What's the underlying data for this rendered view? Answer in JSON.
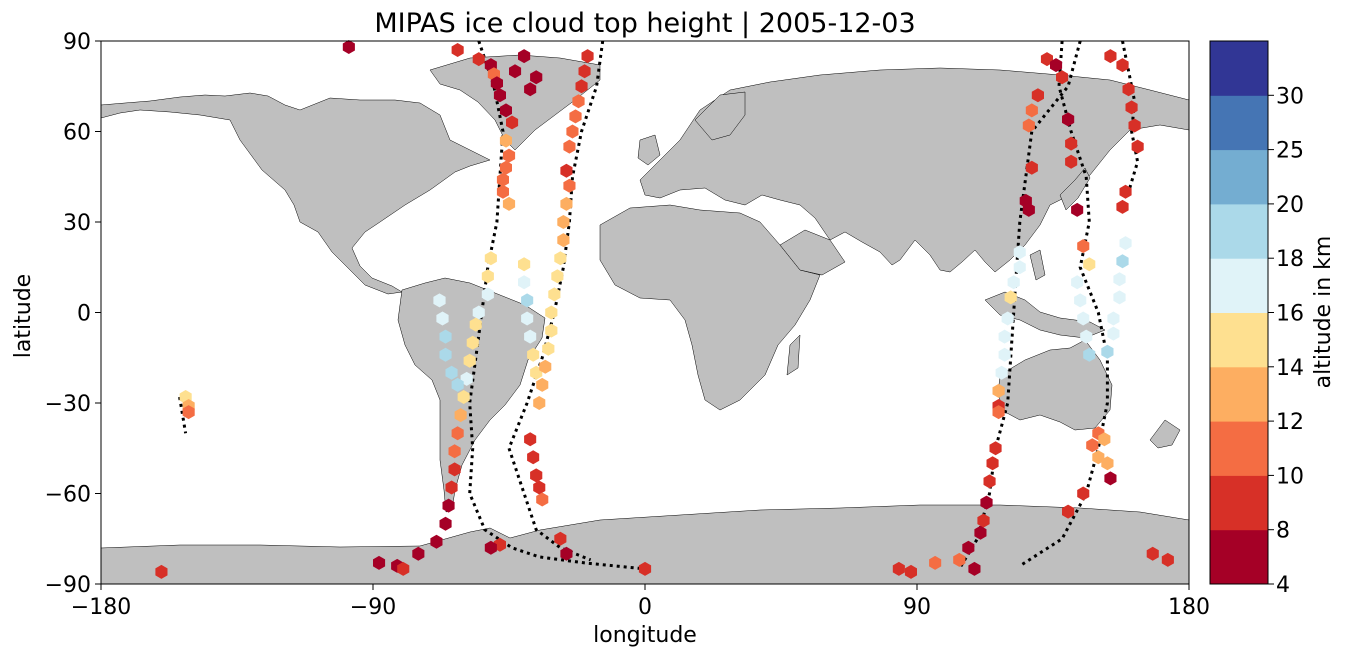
{
  "title": "MIPAS ice cloud top height | 2005-12-03",
  "colors": {
    "land": "#bfbfbf",
    "coast": "#000000",
    "track": "#000000"
  },
  "map": {
    "xlabel": "longitude",
    "ylabel": "latitude",
    "xlim": [
      -180,
      180
    ],
    "ylim": [
      -90,
      90
    ],
    "x_ticks": [
      {
        "value": -180,
        "label": "−180"
      },
      {
        "value": -90,
        "label": "−90"
      },
      {
        "value": 0,
        "label": "0"
      },
      {
        "value": 90,
        "label": "90"
      },
      {
        "value": 180,
        "label": "180"
      }
    ],
    "y_ticks": [
      {
        "value": 90,
        "label": "90"
      },
      {
        "value": 60,
        "label": "60"
      },
      {
        "value": 30,
        "label": "30"
      },
      {
        "value": 0,
        "label": "0"
      },
      {
        "value": -30,
        "label": "−30"
      },
      {
        "value": -60,
        "label": "−60"
      },
      {
        "value": -90,
        "label": "−90"
      }
    ]
  },
  "colorbar": {
    "label": "altitude in km",
    "boundaries": [
      4,
      8,
      10,
      12,
      14,
      16,
      18,
      20,
      25,
      30
    ],
    "tick_labels": [
      "4",
      "8",
      "10",
      "12",
      "14",
      "16",
      "18",
      "20",
      "25",
      "30"
    ],
    "colors": [
      "#a50026",
      "#d73027",
      "#f46d43",
      "#fdae61",
      "#fee090",
      "#e0f3f8",
      "#abd9e9",
      "#74add1",
      "#4575b4",
      "#313695"
    ]
  },
  "chart_data": {
    "type": "scatter",
    "xlabel": "longitude",
    "ylabel": "latitude",
    "xlim": [
      -180,
      180
    ],
    "ylim": [
      -90,
      90
    ],
    "orbit_tracks": [
      [
        [
          -55,
          90
        ],
        [
          -50,
          75
        ],
        [
          -47,
          60
        ],
        [
          -48,
          45
        ],
        [
          -49,
          30
        ],
        [
          -52,
          15
        ],
        [
          -54,
          0
        ],
        [
          -56,
          -15
        ],
        [
          -58,
          -30
        ],
        [
          -57,
          -45
        ],
        [
          -58,
          -60
        ],
        [
          -53,
          -72
        ],
        [
          -44,
          -78
        ],
        [
          -35,
          -81
        ],
        [
          -20,
          -83
        ],
        [
          0,
          -85
        ]
      ],
      [
        [
          -14,
          90
        ],
        [
          -16,
          75
        ],
        [
          -21,
          60
        ],
        [
          -24,
          45
        ],
        [
          -25,
          30
        ],
        [
          -27,
          15
        ],
        [
          -30,
          0
        ],
        [
          -34,
          -15
        ],
        [
          -39,
          -30
        ],
        [
          -45,
          -45
        ],
        [
          -40,
          -60
        ],
        [
          -36,
          -72
        ],
        [
          -28,
          -78
        ],
        [
          -18,
          -82
        ]
      ],
      [
        [
          144,
          90
        ],
        [
          140,
          75
        ],
        [
          128,
          60
        ],
        [
          126,
          45
        ],
        [
          124,
          30
        ],
        [
          123,
          15
        ],
        [
          122,
          0
        ],
        [
          121,
          -15
        ],
        [
          120,
          -30
        ],
        [
          116,
          -45
        ],
        [
          114,
          -60
        ],
        [
          110,
          -75
        ],
        [
          104,
          -85
        ]
      ],
      [
        [
          138,
          90
        ],
        [
          137,
          75
        ],
        [
          141,
          60
        ],
        [
          146,
          45
        ],
        [
          147,
          30
        ],
        [
          144,
          15
        ],
        [
          150,
          0
        ],
        [
          153,
          -15
        ],
        [
          153,
          -30
        ],
        [
          150,
          -45
        ],
        [
          146,
          -60
        ],
        [
          138,
          -75
        ],
        [
          124,
          -84
        ]
      ],
      [
        [
          158,
          90
        ],
        [
          160,
          80
        ],
        [
          162,
          70
        ],
        [
          161,
          60
        ],
        [
          163,
          50
        ],
        [
          160,
          40
        ]
      ],
      [
        [
          -154,
          -28
        ],
        [
          -152,
          -40
        ]
      ]
    ],
    "points": [
      {
        "lon": -98,
        "lat": 88,
        "alt": 6
      },
      {
        "lon": -62,
        "lat": 87,
        "alt": 9
      },
      {
        "lon": -55,
        "lat": 84,
        "alt": 9
      },
      {
        "lon": -51,
        "lat": 82,
        "alt": 6
      },
      {
        "lon": -50,
        "lat": 79,
        "alt": 11
      },
      {
        "lon": -49,
        "lat": 76,
        "alt": 6
      },
      {
        "lon": -43,
        "lat": 80,
        "alt": 6
      },
      {
        "lon": -40,
        "lat": 85,
        "alt": 6
      },
      {
        "lon": -48,
        "lat": 72,
        "alt": 6
      },
      {
        "lon": -46,
        "lat": 67,
        "alt": 6
      },
      {
        "lon": -44,
        "lat": 63,
        "alt": 9
      },
      {
        "lon": -38,
        "lat": 74,
        "alt": 6
      },
      {
        "lon": -36,
        "lat": 78,
        "alt": 6
      },
      {
        "lon": -46,
        "lat": 57,
        "alt": 12
      },
      {
        "lon": -45,
        "lat": 52,
        "alt": 11
      },
      {
        "lon": -46,
        "lat": 48,
        "alt": 11
      },
      {
        "lon": -47,
        "lat": 44,
        "alt": 11
      },
      {
        "lon": -47,
        "lat": 40,
        "alt": 11
      },
      {
        "lon": -45,
        "lat": 36,
        "alt": 13
      },
      {
        "lon": -51,
        "lat": 18,
        "alt": 15
      },
      {
        "lon": -52,
        "lat": 12,
        "alt": 15
      },
      {
        "lon": -52,
        "lat": 6,
        "alt": 17
      },
      {
        "lon": -55,
        "lat": 0,
        "alt": 17
      },
      {
        "lon": -56,
        "lat": -4,
        "alt": 15
      },
      {
        "lon": -57,
        "lat": -10,
        "alt": 15
      },
      {
        "lon": -58,
        "lat": -16,
        "alt": 15
      },
      {
        "lon": -59,
        "lat": -22,
        "alt": 17
      },
      {
        "lon": -60,
        "lat": -28,
        "alt": 15
      },
      {
        "lon": -61,
        "lat": -34,
        "alt": 13
      },
      {
        "lon": -62,
        "lat": -40,
        "alt": 11
      },
      {
        "lon": -63,
        "lat": -46,
        "alt": 11
      },
      {
        "lon": -63,
        "lat": -52,
        "alt": 9
      },
      {
        "lon": -64,
        "lat": -58,
        "alt": 9
      },
      {
        "lon": -65,
        "lat": -64,
        "alt": 6
      },
      {
        "lon": -66,
        "lat": -70,
        "alt": 6
      },
      {
        "lon": -69,
        "lat": -76,
        "alt": 6
      },
      {
        "lon": -75,
        "lat": -80,
        "alt": 6
      },
      {
        "lon": -82,
        "lat": -84,
        "alt": 6
      },
      {
        "lon": -68,
        "lat": 4,
        "alt": 17
      },
      {
        "lon": -67,
        "lat": -2,
        "alt": 17
      },
      {
        "lon": -66,
        "lat": -8,
        "alt": 19
      },
      {
        "lon": -66,
        "lat": -14,
        "alt": 19
      },
      {
        "lon": -64,
        "lat": -20,
        "alt": 19
      },
      {
        "lon": -62,
        "lat": -24,
        "alt": 19
      },
      {
        "lon": -40,
        "lat": 16,
        "alt": 15
      },
      {
        "lon": -40,
        "lat": 10,
        "alt": 17
      },
      {
        "lon": -39,
        "lat": 4,
        "alt": 19
      },
      {
        "lon": -39,
        "lat": -2,
        "alt": 17
      },
      {
        "lon": -38,
        "lat": -8,
        "alt": 17
      },
      {
        "lon": -37,
        "lat": -14,
        "alt": 15
      },
      {
        "lon": -36,
        "lat": -20,
        "alt": 15
      },
      {
        "lon": -19,
        "lat": 85,
        "alt": 9
      },
      {
        "lon": -20,
        "lat": 80,
        "alt": 9
      },
      {
        "lon": -21,
        "lat": 75,
        "alt": 9
      },
      {
        "lon": -22,
        "lat": 70,
        "alt": 11
      },
      {
        "lon": -23,
        "lat": 65,
        "alt": 11
      },
      {
        "lon": -24,
        "lat": 60,
        "alt": 11
      },
      {
        "lon": -25,
        "lat": 55,
        "alt": 11
      },
      {
        "lon": -26,
        "lat": 47,
        "alt": 9
      },
      {
        "lon": -25,
        "lat": 42,
        "alt": 11
      },
      {
        "lon": -26,
        "lat": 36,
        "alt": 13
      },
      {
        "lon": -27,
        "lat": 30,
        "alt": 13
      },
      {
        "lon": -27,
        "lat": 24,
        "alt": 13
      },
      {
        "lon": -28,
        "lat": 18,
        "alt": 15
      },
      {
        "lon": -29,
        "lat": 12,
        "alt": 15
      },
      {
        "lon": -30,
        "lat": 6,
        "alt": 15
      },
      {
        "lon": -31,
        "lat": 0,
        "alt": 15
      },
      {
        "lon": -31,
        "lat": -6,
        "alt": 15
      },
      {
        "lon": -32,
        "lat": -12,
        "alt": 15
      },
      {
        "lon": -33,
        "lat": -18,
        "alt": 13
      },
      {
        "lon": -34,
        "lat": -24,
        "alt": 13
      },
      {
        "lon": -35,
        "lat": -30,
        "alt": 13
      },
      {
        "lon": -38,
        "lat": -42,
        "alt": 9
      },
      {
        "lon": -37,
        "lat": -48,
        "alt": 9
      },
      {
        "lon": -36,
        "lat": -54,
        "alt": 9
      },
      {
        "lon": -35,
        "lat": -58,
        "alt": 9
      },
      {
        "lon": -34,
        "lat": -62,
        "alt": 11
      },
      {
        "lon": -28,
        "lat": -75,
        "alt": 9
      },
      {
        "lon": -26,
        "lat": -80,
        "alt": 6
      },
      {
        "lon": 0,
        "lat": -85,
        "alt": 9
      },
      {
        "lon": -48,
        "lat": -77,
        "alt": 9
      },
      {
        "lon": -51,
        "lat": -78,
        "alt": 6
      },
      {
        "lon": -152,
        "lat": -28,
        "alt": 15
      },
      {
        "lon": -151,
        "lat": -31,
        "alt": 13
      },
      {
        "lon": -151,
        "lat": -33,
        "alt": 11
      },
      {
        "lon": -160,
        "lat": -86,
        "alt": 9
      },
      {
        "lon": -88,
        "lat": -83,
        "alt": 6
      },
      {
        "lon": 133,
        "lat": 84,
        "alt": 9
      },
      {
        "lon": 136,
        "lat": 82,
        "alt": 6
      },
      {
        "lon": 138,
        "lat": 78,
        "alt": 9
      },
      {
        "lon": 130,
        "lat": 72,
        "alt": 9
      },
      {
        "lon": 128,
        "lat": 67,
        "alt": 11
      },
      {
        "lon": 127,
        "lat": 62,
        "alt": 11
      },
      {
        "lon": 140,
        "lat": 64,
        "alt": 6
      },
      {
        "lon": 141,
        "lat": 56,
        "alt": 9
      },
      {
        "lon": 141,
        "lat": 50,
        "alt": 9
      },
      {
        "lon": 128,
        "lat": 48,
        "alt": 9
      },
      {
        "lon": 126,
        "lat": 37,
        "alt": 6
      },
      {
        "lon": 127,
        "lat": 34,
        "alt": 6
      },
      {
        "lon": 143,
        "lat": 34,
        "alt": 6
      },
      {
        "lon": 145,
        "lat": 22,
        "alt": 11
      },
      {
        "lon": 147,
        "lat": 16,
        "alt": 15
      },
      {
        "lon": 124,
        "lat": 20,
        "alt": 17
      },
      {
        "lon": 124,
        "lat": 15,
        "alt": 17
      },
      {
        "lon": 122,
        "lat": 10,
        "alt": 17
      },
      {
        "lon": 121,
        "lat": 5,
        "alt": 15
      },
      {
        "lon": 120,
        "lat": -2,
        "alt": 17
      },
      {
        "lon": 119,
        "lat": -8,
        "alt": 17
      },
      {
        "lon": 119,
        "lat": -14,
        "alt": 17
      },
      {
        "lon": 118,
        "lat": -20,
        "alt": 17
      },
      {
        "lon": 117,
        "lat": -26,
        "alt": 13
      },
      {
        "lon": 117,
        "lat": -31,
        "alt": 9
      },
      {
        "lon": 117,
        "lat": -33,
        "alt": 11
      },
      {
        "lon": 116,
        "lat": -45,
        "alt": 9
      },
      {
        "lon": 115,
        "lat": -50,
        "alt": 9
      },
      {
        "lon": 114,
        "lat": -56,
        "alt": 9
      },
      {
        "lon": 113,
        "lat": -63,
        "alt": 6
      },
      {
        "lon": 112,
        "lat": -69,
        "alt": 9
      },
      {
        "lon": 111,
        "lat": -73,
        "alt": 6
      },
      {
        "lon": 107,
        "lat": -78,
        "alt": 6
      },
      {
        "lon": 104,
        "lat": -82,
        "alt": 11
      },
      {
        "lon": 109,
        "lat": -85,
        "alt": 6
      },
      {
        "lon": 143,
        "lat": 10,
        "alt": 17
      },
      {
        "lon": 144,
        "lat": 4,
        "alt": 17
      },
      {
        "lon": 145,
        "lat": -2,
        "alt": 17
      },
      {
        "lon": 146,
        "lat": -8,
        "alt": 17
      },
      {
        "lon": 147,
        "lat": -14,
        "alt": 19
      },
      {
        "lon": 150,
        "lat": -40,
        "alt": 11
      },
      {
        "lon": 148,
        "lat": -44,
        "alt": 11
      },
      {
        "lon": 150,
        "lat": -48,
        "alt": 13
      },
      {
        "lon": 152,
        "lat": -42,
        "alt": 13
      },
      {
        "lon": 153,
        "lat": -50,
        "alt": 13
      },
      {
        "lon": 145,
        "lat": -60,
        "alt": 9
      },
      {
        "lon": 140,
        "lat": -66,
        "alt": 9
      },
      {
        "lon": 159,
        "lat": 23,
        "alt": 17
      },
      {
        "lon": 158,
        "lat": 17,
        "alt": 19
      },
      {
        "lon": 157,
        "lat": 11,
        "alt": 17
      },
      {
        "lon": 157,
        "lat": 5,
        "alt": 17
      },
      {
        "lon": 155,
        "lat": -2,
        "alt": 17
      },
      {
        "lon": 155,
        "lat": -7,
        "alt": 17
      },
      {
        "lon": 153,
        "lat": -13,
        "alt": 19
      },
      {
        "lon": 154,
        "lat": -55,
        "alt": 6
      },
      {
        "lon": 158,
        "lat": 35,
        "alt": 9
      },
      {
        "lon": 159,
        "lat": 40,
        "alt": 9
      },
      {
        "lon": 154,
        "lat": 85,
        "alt": 9
      },
      {
        "lon": 158,
        "lat": 82,
        "alt": 9
      },
      {
        "lon": 160,
        "lat": 74,
        "alt": 9
      },
      {
        "lon": 161,
        "lat": 68,
        "alt": 9
      },
      {
        "lon": 162,
        "lat": 62,
        "alt": 9
      },
      {
        "lon": 163,
        "lat": 55,
        "alt": 9
      },
      {
        "lon": -80,
        "lat": -85,
        "alt": 9
      },
      {
        "lon": 84,
        "lat": -85,
        "alt": 9
      },
      {
        "lon": 88,
        "lat": -86,
        "alt": 9
      },
      {
        "lon": 96,
        "lat": -83,
        "alt": 11
      },
      {
        "lon": 168,
        "lat": -80,
        "alt": 9
      },
      {
        "lon": 173,
        "lat": -82,
        "alt": 9
      }
    ]
  }
}
